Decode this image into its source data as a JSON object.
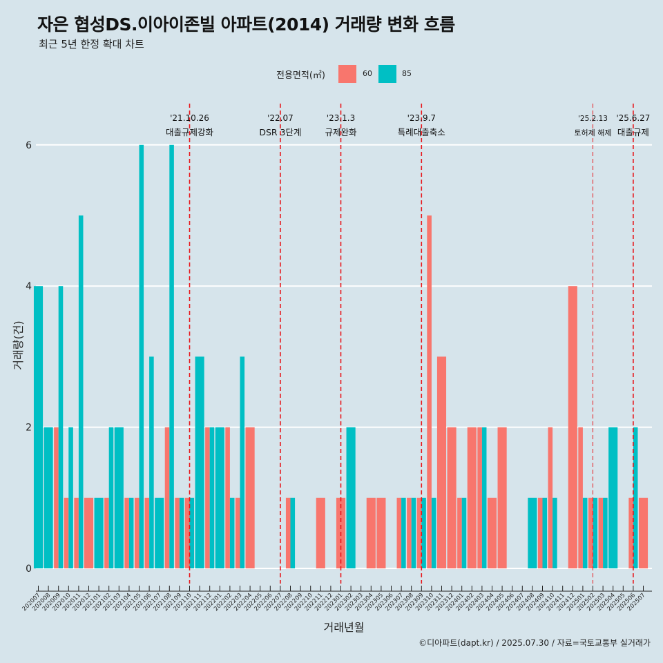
{
  "title": "자은 협성DS.이아이존빌 아파트(2014) 거래량 변화 흐름",
  "subtitle": "최근 5년 한정 확대 차트",
  "caption": "©디아파트(dapt.kr) / 2025.07.30 / 자료=국토교통부 실거래가",
  "legend": {
    "title": "전용면적(㎡)",
    "items": [
      {
        "label": "60",
        "color": "#F8766D"
      },
      {
        "label": "85",
        "color": "#00BFC4"
      }
    ]
  },
  "chart_data": {
    "type": "bar",
    "xlabel": "거래년월",
    "ylabel": "거래량(건)",
    "ylim": [
      0,
      6
    ],
    "yticks": [
      0,
      2,
      4,
      6
    ],
    "grid": true,
    "legend_position": "top",
    "categories": [
      "202007",
      "202008",
      "202009",
      "202010",
      "202011",
      "202012",
      "202101",
      "202102",
      "202103",
      "202104",
      "202105",
      "202106",
      "202107",
      "202108",
      "202109",
      "202110",
      "202111",
      "202112",
      "202201",
      "202202",
      "202203",
      "202204",
      "202205",
      "202206",
      "202207",
      "202208",
      "202209",
      "202210",
      "202211",
      "202212",
      "202301",
      "202302",
      "202303",
      "202304",
      "202305",
      "202306",
      "202307",
      "202308",
      "202309",
      "202310",
      "202311",
      "202312",
      "202401",
      "202402",
      "202403",
      "202404",
      "202405",
      "202406",
      "202407",
      "202408",
      "202409",
      "202410",
      "202411",
      "202412",
      "202501",
      "202502",
      "202503",
      "202504",
      "202505",
      "202506",
      "202507"
    ],
    "series": [
      {
        "name": "60",
        "color": "#F8766D",
        "values": [
          0,
          0,
          2,
          1,
          1,
          1,
          0,
          1,
          0,
          1,
          1,
          1,
          0,
          2,
          1,
          1,
          0,
          2,
          0,
          2,
          1,
          2,
          0,
          0,
          0,
          1,
          0,
          0,
          1,
          0,
          1,
          0,
          0,
          1,
          1,
          0,
          1,
          1,
          1,
          5,
          3,
          2,
          1,
          2,
          2,
          1,
          2,
          0,
          0,
          0,
          1,
          2,
          0,
          4,
          2,
          1,
          1,
          0,
          0,
          1,
          1
        ]
      },
      {
        "name": "85",
        "color": "#00BFC4",
        "values": [
          4,
          2,
          4,
          2,
          5,
          0,
          1,
          2,
          2,
          1,
          6,
          3,
          1,
          6,
          1,
          1,
          3,
          2,
          2,
          1,
          3,
          0,
          0,
          0,
          0,
          1,
          0,
          0,
          0,
          0,
          0,
          2,
          0,
          0,
          0,
          0,
          1,
          1,
          1,
          1,
          0,
          0,
          1,
          0,
          2,
          0,
          0,
          0,
          0,
          1,
          1,
          1,
          0,
          0,
          1,
          1,
          1,
          2,
          0,
          2,
          0
        ]
      }
    ],
    "events": [
      {
        "date": "'21.10.26",
        "label": "대출규제강화",
        "category": "202110"
      },
      {
        "date": "'22.07",
        "label": "DSR 3단계",
        "category": "202207"
      },
      {
        "date": "'23.1.3",
        "label": "규제완화",
        "category": "202301"
      },
      {
        "date": "'23.9.7",
        "label": "특례대출축소",
        "category": "202309"
      },
      {
        "date": "'25.2.13",
        "label": "토허제 해제",
        "category": "202502"
      },
      {
        "date": "'25.6.27",
        "label": "대출규제",
        "category": "202506"
      }
    ]
  }
}
